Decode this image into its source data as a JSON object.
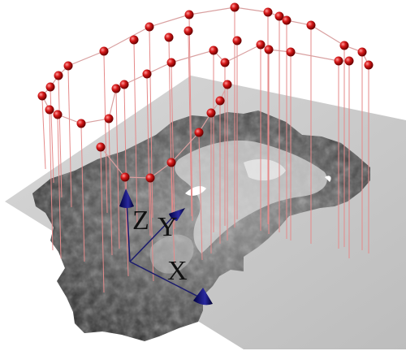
{
  "axes": {
    "z_label": "Z",
    "y_label": "Y",
    "x_label": "X"
  },
  "colors": {
    "background": "#ffffff",
    "ground_plane": "#c9c9c9",
    "terrain_dark": "#2a2a2a",
    "terrain_mid": "#6a6a6a",
    "terrain_light": "#e0e0e0",
    "marker": "#cc1010",
    "drop_line": "#e58a8a",
    "path_line": "#d9a0a0",
    "axis_line": "#1a1a6e",
    "axis_cone": "#1a1a7a"
  },
  "icons": [
    "sphere-marker",
    "axis-arrow-cone"
  ]
}
